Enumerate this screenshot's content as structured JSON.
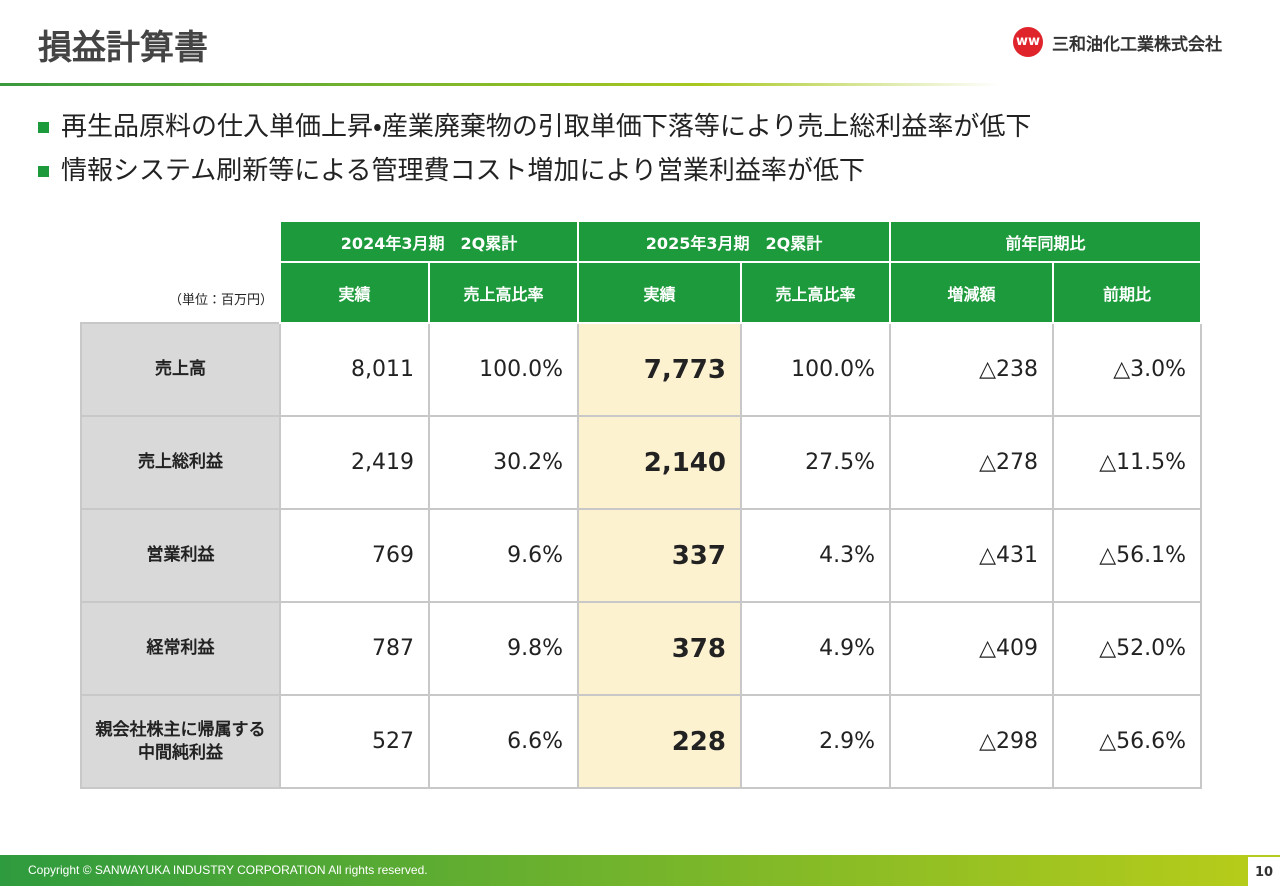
{
  "header": {
    "title": "損益計算書",
    "company": "三和油化工業株式会社"
  },
  "bullets": [
    "再生品原料の仕入単価上昇・産業廃棄物の引取単価下落等により売上総利益率が低下",
    "情報システム刷新等による管理費コスト増加により営業利益率が低下"
  ],
  "table": {
    "unit": "（単位：百万円）",
    "groups": [
      "2024年3月期　2Q累計",
      "2025年3月期　2Q累計",
      "前年同期比"
    ],
    "subheaders": [
      "実績",
      "売上高比率",
      "実績",
      "売上高比率",
      "増減額",
      "前期比"
    ],
    "rows": [
      {
        "label": "売上高",
        "cells": [
          "8,011",
          "100.0%",
          "7,773",
          "100.0%",
          "△238",
          "△3.0%"
        ]
      },
      {
        "label": "売上総利益",
        "cells": [
          "2,419",
          "30.2%",
          "2,140",
          "27.5%",
          "△278",
          "△11.5%"
        ]
      },
      {
        "label": "営業利益",
        "cells": [
          "769",
          "9.6%",
          "337",
          "4.3%",
          "△431",
          "△56.1%"
        ]
      },
      {
        "label": "経常利益",
        "cells": [
          "787",
          "9.8%",
          "378",
          "4.9%",
          "△409",
          "△52.0%"
        ]
      },
      {
        "label": "親会社株主に帰属する\n中間純利益",
        "cells": [
          "527",
          "6.6%",
          "228",
          "2.9%",
          "△298",
          "△56.6%"
        ]
      }
    ]
  },
  "footer": {
    "copyright": "Copyright © SANWAYUKA INDUSTRY CORPORATION All rights reserved.",
    "page": "10"
  }
}
